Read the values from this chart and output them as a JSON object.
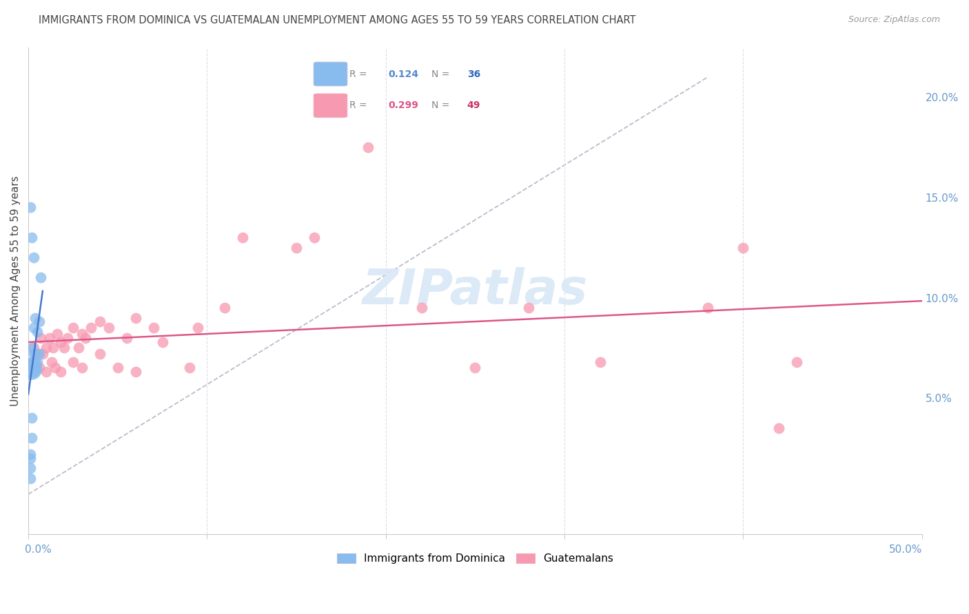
{
  "title": "IMMIGRANTS FROM DOMINICA VS GUATEMALAN UNEMPLOYMENT AMONG AGES 55 TO 59 YEARS CORRELATION CHART",
  "source": "Source: ZipAtlas.com",
  "ylabel": "Unemployment Among Ages 55 to 59 years",
  "right_ytick_vals": [
    0.05,
    0.1,
    0.15,
    0.2
  ],
  "right_ytick_labels": [
    "5.0%",
    "10.0%",
    "15.0%",
    "20.0%"
  ],
  "xlim": [
    0.0,
    0.5
  ],
  "ylim": [
    -0.018,
    0.225
  ],
  "legend_blue_R": "0.124",
  "legend_blue_N": "36",
  "legend_pink_R": "0.299",
  "legend_pink_N": "49",
  "blue_color": "#88bbee",
  "pink_color": "#f799b0",
  "trendline_blue_color": "#4477cc",
  "trendline_pink_color": "#dd5588",
  "dashed_color": "#bbbbcc",
  "watermark_color": "#d8e8f5",
  "grid_color": "#ddddee",
  "label_color": "#6699cc",
  "text_color": "#444444",
  "source_color": "#999999",
  "background": "#ffffff",
  "blue_x": [
    0.001,
    0.001,
    0.001,
    0.001,
    0.001,
    0.001,
    0.001,
    0.001,
    0.001,
    0.001,
    0.002,
    0.002,
    0.002,
    0.002,
    0.002,
    0.002,
    0.002,
    0.002,
    0.003,
    0.003,
    0.003,
    0.003,
    0.003,
    0.004,
    0.004,
    0.004,
    0.005,
    0.005,
    0.006,
    0.006,
    0.007,
    0.001,
    0.002,
    0.003,
    0.002,
    0.001
  ],
  "blue_y": [
    0.063,
    0.063,
    0.064,
    0.065,
    0.065,
    0.066,
    0.067,
    0.022,
    0.015,
    0.01,
    0.063,
    0.064,
    0.065,
    0.066,
    0.067,
    0.068,
    0.075,
    0.03,
    0.063,
    0.065,
    0.068,
    0.072,
    0.085,
    0.065,
    0.072,
    0.09,
    0.068,
    0.083,
    0.072,
    0.088,
    0.11,
    0.145,
    0.13,
    0.12,
    0.04,
    0.02
  ],
  "pink_x": [
    0.002,
    0.003,
    0.004,
    0.005,
    0.006,
    0.007,
    0.008,
    0.01,
    0.01,
    0.012,
    0.013,
    0.014,
    0.015,
    0.016,
    0.018,
    0.018,
    0.02,
    0.022,
    0.025,
    0.025,
    0.028,
    0.03,
    0.03,
    0.032,
    0.035,
    0.04,
    0.04,
    0.045,
    0.05,
    0.055,
    0.06,
    0.06,
    0.07,
    0.075,
    0.09,
    0.095,
    0.11,
    0.12,
    0.15,
    0.16,
    0.19,
    0.22,
    0.25,
    0.28,
    0.32,
    0.38,
    0.4,
    0.42,
    0.43
  ],
  "pink_y": [
    0.068,
    0.075,
    0.068,
    0.072,
    0.065,
    0.08,
    0.072,
    0.075,
    0.063,
    0.08,
    0.068,
    0.075,
    0.065,
    0.082,
    0.078,
    0.063,
    0.075,
    0.08,
    0.085,
    0.068,
    0.075,
    0.065,
    0.082,
    0.08,
    0.085,
    0.072,
    0.088,
    0.085,
    0.065,
    0.08,
    0.063,
    0.09,
    0.085,
    0.078,
    0.065,
    0.085,
    0.095,
    0.13,
    0.125,
    0.13,
    0.175,
    0.095,
    0.065,
    0.095,
    0.068,
    0.095,
    0.125,
    0.035,
    0.068
  ]
}
